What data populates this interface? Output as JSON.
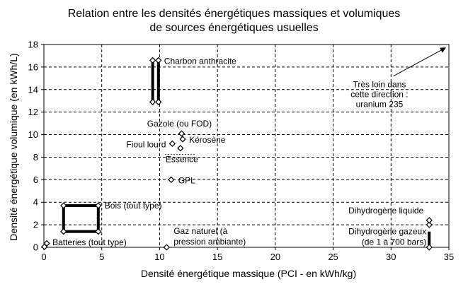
{
  "chart_data": {
    "type": "scatter",
    "title_line1": "Relation entre les densités énergétiques massiques et volumiques",
    "title_line2": "de sources énergétiques usuelles",
    "xlabel": "Densité énergétique massique (PCI - en kWh/kg)",
    "ylabel": "Densité énergétique volumique (en kWh/L)",
    "xlim": [
      0,
      35
    ],
    "ylim": [
      0,
      18
    ],
    "x_ticks": [
      "0",
      "5",
      "10",
      "15",
      "20",
      "25",
      "30",
      "35"
    ],
    "y_ticks": [
      "0",
      "2",
      "4",
      "6",
      "8",
      "10",
      "12",
      "14",
      "16",
      "18"
    ],
    "grid": true,
    "points": [
      {
        "label": "Gazole (ou FOD)",
        "x": 11.9,
        "y": 10.1
      },
      {
        "label": "Kérosène",
        "x": 12.0,
        "y": 9.6
      },
      {
        "label": "Fioul lourd",
        "x": 11.1,
        "y": 9.2
      },
      {
        "label": "Essence",
        "x": 11.8,
        "y": 8.8
      },
      {
        "label": "GPL",
        "x": 11.0,
        "y": 6.0
      },
      {
        "label": "Gaz naturel (à pression ambiante)",
        "x": 10.6,
        "y": 0.0
      }
    ],
    "ranges": [
      {
        "label": "Charbon anthracite",
        "x": [
          9.4,
          9.9
        ],
        "y": [
          12.9,
          16.6
        ]
      },
      {
        "label": "Bois (tout type)",
        "x": [
          1.7,
          4.7
        ],
        "y": [
          1.4,
          3.7
        ]
      },
      {
        "label": "Batteries (tout type)",
        "x": [
          0.05,
          0.25
        ],
        "y": [
          0.05,
          0.35
        ]
      },
      {
        "label": "Dihydrogène gazeux (de 1 à 700 bars)",
        "x": [
          33.3,
          33.3
        ],
        "y": [
          0.0,
          1.4
        ]
      },
      {
        "label": "Dihydrogène liquide",
        "x": [
          33.3,
          33.3
        ],
        "y": [
          2.0,
          2.4
        ]
      }
    ],
    "annotation": {
      "label": "Très loin dans cette direction : uranium 235",
      "from": [
        30.2,
        15.2
      ],
      "to": [
        34.7,
        17.7
      ]
    }
  }
}
